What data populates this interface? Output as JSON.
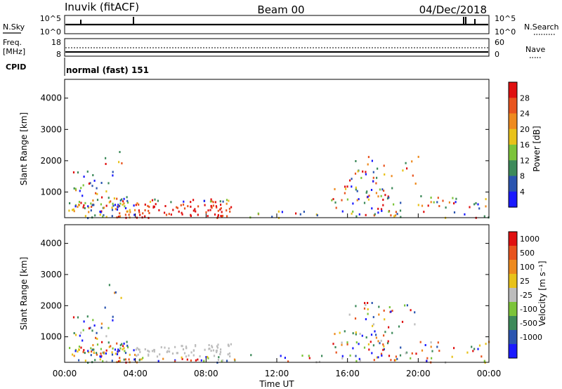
{
  "header": {
    "station": "Inuvik (fitACF)",
    "beam": "Beam 00",
    "date": "04/Dec/2018"
  },
  "noise_panel": {
    "left_label": "N.Sky",
    "right_label": "N.Search",
    "left_ticks": [
      "10^5",
      "10^0"
    ],
    "right_ticks": [
      "10^5",
      "10^0"
    ]
  },
  "freq_panel": {
    "left_label_1": "Freq.",
    "left_label_2": "[MHz]",
    "right_label": "Nave",
    "left_ticks": [
      "18",
      "8"
    ],
    "right_ticks": [
      "60",
      "0"
    ]
  },
  "cpid_panel": {
    "label": "CPID",
    "mode_text": "normal (fast) 151"
  },
  "chart_data": [
    {
      "type": "heatmap",
      "title": "",
      "ylabel": "Slant Range [km]",
      "xlabel": "",
      "ylim": [
        180,
        4600
      ],
      "yticks": [
        "1000",
        "2000",
        "3000",
        "4000"
      ],
      "xticks": [
        "00:00",
        "04:00",
        "08:00",
        "12:00",
        "16:00",
        "20:00",
        "00:00"
      ],
      "colorbar_label": "Power [dB]",
      "colorbar_ticks": [
        "4",
        "8",
        "12",
        "16",
        "20",
        "24",
        "28"
      ],
      "colors": [
        "#1a1aff",
        "#2b55b0",
        "#3d8a5a",
        "#7cc43a",
        "#e8c21a",
        "#ee8a1e",
        "#e8541e",
        "#e01010"
      ]
    },
    {
      "type": "heatmap",
      "title": "",
      "ylabel": "Slant Range [km]",
      "xlabel": "Time UT",
      "ylim": [
        180,
        4600
      ],
      "yticks": [
        "1000",
        "2000",
        "3000",
        "4000"
      ],
      "xticks": [
        "00:00",
        "04:00",
        "08:00",
        "12:00",
        "16:00",
        "20:00",
        "00:00"
      ],
      "colorbar_label": "Velocity [m s⁻¹]",
      "colorbar_ticks": [
        "1000",
        "500",
        "100",
        "25",
        "-25",
        "-100",
        "-500",
        "-1000"
      ],
      "colors": [
        "#1a1aff",
        "#2b55b0",
        "#3d8a5a",
        "#7cc43a",
        "#bdbdbd",
        "#e8c21a",
        "#ee8a1e",
        "#e8541e",
        "#e01010"
      ]
    }
  ]
}
